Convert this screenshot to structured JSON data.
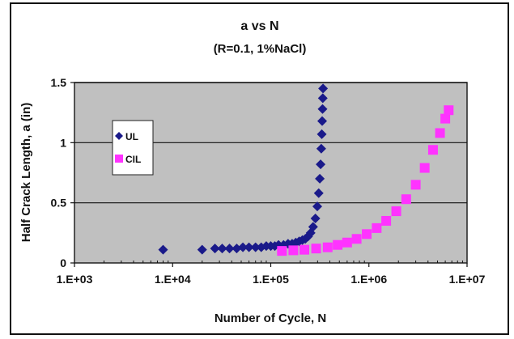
{
  "chart_data": {
    "type": "scatter",
    "title": "a vs N",
    "subtitle": "(R=0.1, 1%NaCl)",
    "xlabel": "Number of Cycle, N",
    "ylabel": "Half Crack Length, a (in)",
    "xscale": "log",
    "xlim": [
      1000,
      10000000
    ],
    "ylim": [
      0,
      1.5
    ],
    "x_tick_labels": [
      "1.E+03",
      "1.E+04",
      "1.E+05",
      "1.E+06",
      "1.E+07"
    ],
    "y_tick_labels": [
      "0",
      "0.5",
      "1",
      "1.5"
    ],
    "grid": "horizontal",
    "plot_background": "#c0c0c0",
    "legend_position": "left",
    "series": [
      {
        "name": "UL",
        "color": "#1a1a8a",
        "marker": "diamond",
        "points": [
          [
            8000,
            0.11
          ],
          [
            20000,
            0.11
          ],
          [
            27000,
            0.12
          ],
          [
            32000,
            0.12
          ],
          [
            38000,
            0.12
          ],
          [
            45000,
            0.12
          ],
          [
            52000,
            0.13
          ],
          [
            60000,
            0.13
          ],
          [
            70000,
            0.13
          ],
          [
            80000,
            0.13
          ],
          [
            90000,
            0.14
          ],
          [
            100000,
            0.14
          ],
          [
            110000,
            0.14
          ],
          [
            120000,
            0.15
          ],
          [
            135000,
            0.15
          ],
          [
            150000,
            0.16
          ],
          [
            165000,
            0.16
          ],
          [
            180000,
            0.17
          ],
          [
            195000,
            0.18
          ],
          [
            210000,
            0.19
          ],
          [
            225000,
            0.2
          ],
          [
            240000,
            0.22
          ],
          [
            255000,
            0.25
          ],
          [
            270000,
            0.3
          ],
          [
            285000,
            0.37
          ],
          [
            298000,
            0.47
          ],
          [
            308000,
            0.58
          ],
          [
            316000,
            0.7
          ],
          [
            322000,
            0.82
          ],
          [
            327000,
            0.95
          ],
          [
            331000,
            1.07
          ],
          [
            334000,
            1.18
          ],
          [
            337000,
            1.28
          ],
          [
            339000,
            1.37
          ],
          [
            341000,
            1.45
          ]
        ]
      },
      {
        "name": "CIL",
        "color": "#ff33ff",
        "marker": "square",
        "points": [
          [
            130000,
            0.1
          ],
          [
            170000,
            0.105
          ],
          [
            220000,
            0.11
          ],
          [
            290000,
            0.12
          ],
          [
            380000,
            0.13
          ],
          [
            480000,
            0.15
          ],
          [
            600000,
            0.17
          ],
          [
            750000,
            0.2
          ],
          [
            950000,
            0.24
          ],
          [
            1200000,
            0.29
          ],
          [
            1500000,
            0.35
          ],
          [
            1900000,
            0.43
          ],
          [
            2400000,
            0.53
          ],
          [
            3000000,
            0.65
          ],
          [
            3700000,
            0.79
          ],
          [
            4500000,
            0.94
          ],
          [
            5300000,
            1.08
          ],
          [
            6000000,
            1.2
          ],
          [
            6500000,
            1.27
          ]
        ]
      }
    ]
  }
}
